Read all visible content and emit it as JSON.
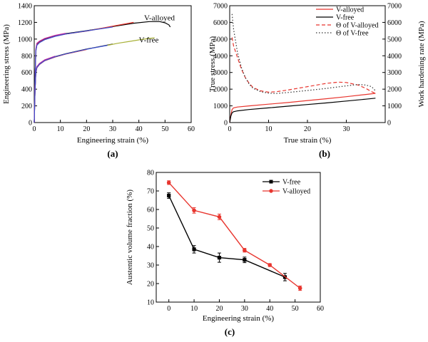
{
  "chart_data": [
    {
      "id": "a",
      "type": "line",
      "panel_label": "(a)",
      "xlabel": "Engineering strain (%)",
      "ylabel": "Engineering stress (MPa)",
      "xlim": [
        0,
        60
      ],
      "ylim": [
        0,
        1400
      ],
      "xticks": [
        0,
        10,
        20,
        30,
        40,
        50,
        60
      ],
      "yticks": [
        0,
        200,
        400,
        600,
        800,
        1000,
        1200,
        1400
      ],
      "grid": false,
      "legend": "none",
      "annotations": [
        {
          "text": "V-alloyed",
          "x": 42,
          "y": 1225
        },
        {
          "text": "V-free",
          "x": 40,
          "y": 960
        }
      ],
      "series": [
        {
          "name": "V-alloyed",
          "color": "#000000",
          "x": [
            0,
            0.3,
            0.6,
            1,
            2,
            4,
            8,
            12,
            20,
            30,
            38,
            44,
            48,
            50,
            51.5,
            52
          ],
          "y": [
            0,
            500,
            860,
            935,
            965,
            1000,
            1040,
            1065,
            1100,
            1150,
            1190,
            1210,
            1210,
            1195,
            1170,
            1145
          ]
        },
        {
          "name": "V-alloyed (repeat 1)",
          "color": "#e8352e",
          "x": [
            0,
            0.3,
            0.6,
            1,
            2,
            4,
            8,
            12,
            20,
            30,
            38
          ],
          "y": [
            0,
            500,
            855,
            930,
            960,
            995,
            1035,
            1060,
            1095,
            1155,
            1200
          ]
        },
        {
          "name": "V-alloyed (repeat 2)",
          "color": "#c02aa0",
          "x": [
            0,
            0.3,
            0.6,
            1,
            2,
            4,
            8,
            12
          ],
          "y": [
            0,
            500,
            880,
            950,
            975,
            1008,
            1045,
            1070
          ]
        },
        {
          "name": "V-alloyed (repeat 3)",
          "color": "#3a4fd0",
          "x": [
            0,
            0.3,
            0.6,
            1,
            2,
            4,
            8,
            12,
            20,
            30
          ],
          "y": [
            0,
            500,
            850,
            925,
            958,
            993,
            1033,
            1060,
            1098,
            1145
          ]
        },
        {
          "name": "V-free",
          "color": "#000000",
          "x": [
            0,
            0.3,
            0.6,
            1,
            2,
            4,
            8,
            12,
            20,
            30
          ],
          "y": [
            0,
            380,
            600,
            660,
            700,
            745,
            790,
            825,
            880,
            940
          ]
        },
        {
          "name": "V-free (repeat 1)",
          "color": "#e8352e",
          "x": [
            0,
            0.3,
            0.6,
            1,
            2,
            4,
            8,
            12,
            20
          ],
          "y": [
            0,
            380,
            590,
            655,
            695,
            740,
            785,
            820,
            875
          ]
        },
        {
          "name": "V-free (repeat 2)",
          "color": "#c02aa0",
          "x": [
            0,
            0.3,
            0.6,
            1,
            2,
            4,
            8
          ],
          "y": [
            0,
            380,
            610,
            670,
            708,
            752,
            796
          ]
        },
        {
          "name": "V-free (repeat 3)",
          "color": "#3a4fd0",
          "x": [
            0,
            0.3,
            0.6,
            1,
            2,
            4,
            8,
            12,
            20,
            28
          ],
          "y": [
            0,
            380,
            595,
            658,
            698,
            742,
            788,
            822,
            878,
            925
          ]
        },
        {
          "name": "V-free (repeat 4)",
          "color": "#a9b23a",
          "x": [
            28,
            32,
            36,
            40,
            44,
            46
          ],
          "y": [
            925,
            950,
            970,
            990,
            1008,
            1015
          ]
        }
      ]
    },
    {
      "id": "b",
      "type": "line",
      "panel_label": "(b)",
      "xlabel": "True strain (%)",
      "ylabel": "True stress (MPa)",
      "ylabel_right": "Work hardening rate (MPa)",
      "xlim": [
        0,
        40
      ],
      "ylim": [
        0,
        7000
      ],
      "ylim_right": [
        0,
        7000
      ],
      "xticks": [
        0,
        10,
        20,
        30
      ],
      "yticks": [
        0,
        1000,
        2000,
        3000,
        4000,
        5000,
        6000,
        7000
      ],
      "yticks_right": [
        0,
        1000,
        2000,
        3000,
        4000,
        5000,
        6000,
        7000
      ],
      "grid": false,
      "legend": "top-right",
      "series": [
        {
          "name": "V-alloyed",
          "color": "#e8352e",
          "dash": "solid",
          "x": [
            0,
            0.3,
            0.6,
            1,
            2,
            5,
            10,
            15,
            20,
            25,
            30,
            35,
            37.5
          ],
          "y": [
            0,
            450,
            780,
            880,
            930,
            1000,
            1100,
            1200,
            1320,
            1430,
            1550,
            1680,
            1750
          ]
        },
        {
          "name": "V-free",
          "color": "#000000",
          "dash": "solid",
          "x": [
            0,
            0.3,
            0.6,
            1,
            2,
            5,
            10,
            15,
            20,
            25,
            30,
            35,
            37.5
          ],
          "y": [
            0,
            380,
            580,
            650,
            700,
            780,
            880,
            980,
            1080,
            1180,
            1290,
            1400,
            1460
          ]
        },
        {
          "name": "Θ of V-alloyed",
          "color": "#e8352e",
          "dash": "dashed",
          "x": [
            0.6,
            1,
            2,
            3,
            4,
            5,
            6,
            8,
            10,
            12,
            15,
            20,
            25,
            28,
            30,
            33,
            35,
            36.5,
            37.5
          ],
          "y": [
            5100,
            4600,
            3900,
            3200,
            2700,
            2350,
            2100,
            1900,
            1820,
            1850,
            1950,
            2150,
            2350,
            2420,
            2400,
            2250,
            2050,
            1850,
            1750
          ]
        },
        {
          "name": "Θ of V-free",
          "color": "#333333",
          "dash": "dotted",
          "x": [
            0.6,
            1,
            2,
            3,
            4,
            5,
            6,
            8,
            10,
            12,
            15,
            20,
            25,
            30,
            33,
            35,
            36.5,
            37.5
          ],
          "y": [
            6500,
            5600,
            4200,
            3300,
            2700,
            2300,
            2050,
            1850,
            1760,
            1740,
            1800,
            1920,
            2050,
            2200,
            2280,
            2250,
            2150,
            1900
          ]
        }
      ]
    },
    {
      "id": "c",
      "type": "line",
      "panel_label": "(c)",
      "xlabel": "Engineering strain (%)",
      "ylabel": "Austentic volume fraction (%)",
      "xlim": [
        -5,
        60
      ],
      "ylim": [
        10,
        80
      ],
      "xticks": [
        0,
        10,
        20,
        30,
        40,
        50,
        60
      ],
      "yticks": [
        10,
        20,
        30,
        40,
        50,
        60,
        70,
        80
      ],
      "grid": false,
      "legend": "top-right",
      "series": [
        {
          "name": "V-free",
          "color": "#000000",
          "marker": "square",
          "x": [
            0,
            10,
            20,
            30,
            46
          ],
          "y": [
            67.5,
            38.5,
            34,
            32.8,
            23.5
          ],
          "err": [
            1.5,
            2,
            2.5,
            1.5,
            2
          ]
        },
        {
          "name": "V-alloyed",
          "color": "#e8352e",
          "marker": "circle",
          "x": [
            0,
            10,
            20,
            30,
            40,
            52
          ],
          "y": [
            74.5,
            59.5,
            56,
            38,
            30,
            17.5
          ],
          "err": [
            1,
            1.5,
            1.5,
            1,
            0.8,
            1.2
          ]
        }
      ]
    }
  ]
}
